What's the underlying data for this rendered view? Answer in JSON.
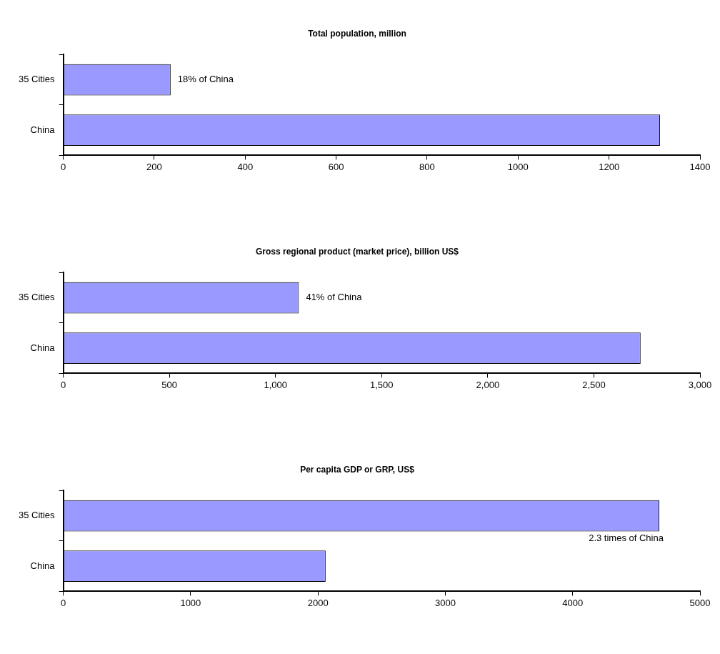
{
  "chart_data": [
    {
      "type": "bar",
      "orientation": "horizontal",
      "title": "Total population, million",
      "categories": [
        "35 Cities",
        "China"
      ],
      "values": [
        236,
        1312
      ],
      "color": "#9999ff",
      "xlim": [
        0,
        1400
      ],
      "xticks": [
        0,
        200,
        400,
        600,
        800,
        1000,
        1200,
        1400
      ],
      "annotations": [
        {
          "text": "18% of China",
          "x": 236,
          "y": "35 Cities"
        }
      ]
    },
    {
      "type": "bar",
      "orientation": "horizontal",
      "title": "Gross regional product (market price), billion US$",
      "categories": [
        "35 Cities",
        "China"
      ],
      "values": [
        1110,
        2720
      ],
      "color": "#9999ff",
      "xlim": [
        0,
        3000
      ],
      "xticks": [
        0,
        500,
        {
          "value": 1000,
          "label": "1,000"
        },
        {
          "value": 1500,
          "label": "1,500"
        },
        {
          "value": 2000,
          "label": "2,000"
        },
        {
          "value": 2500,
          "label": "2,500"
        },
        {
          "value": 3000,
          "label": "3,000"
        }
      ],
      "annotations": [
        {
          "text": "41% of China",
          "x": 1110,
          "y": "35 Cities"
        }
      ]
    },
    {
      "type": "bar",
      "orientation": "horizontal",
      "title": "Per capita GDP or GRP, US$",
      "categories": [
        "35 Cities",
        "China"
      ],
      "values": [
        4680,
        2060
      ],
      "color": "#9999ff",
      "xlim": [
        0,
        5000
      ],
      "xticks": [
        0,
        1000,
        2000,
        3000,
        4000,
        5000
      ],
      "annotations": [
        {
          "text": "2.3 times of China",
          "x": 4680,
          "y": "35 Cities"
        }
      ]
    }
  ]
}
